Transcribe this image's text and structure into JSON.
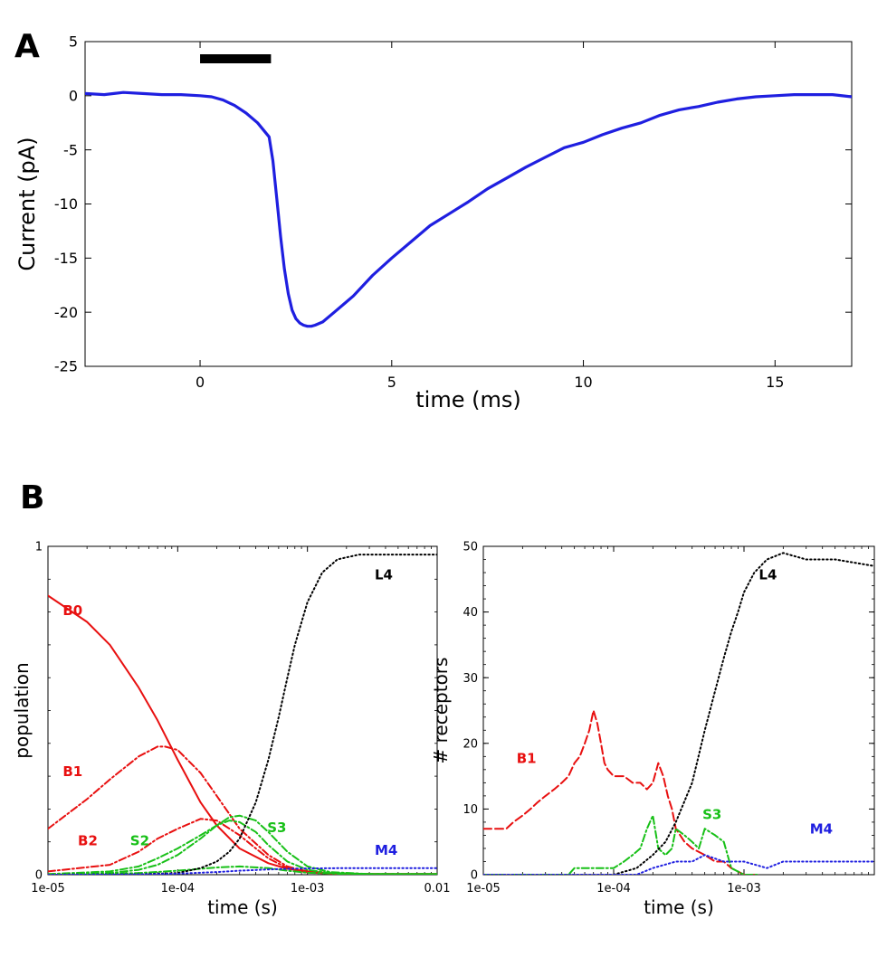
{
  "chart_data": [
    {
      "panel": "A",
      "type": "line",
      "xlabel": "time (ms)",
      "ylabel": "Current (pA)",
      "xlim": [
        -3,
        17
      ],
      "ylim": [
        -25,
        5
      ],
      "xticks": [
        "0",
        "5",
        "10",
        "15"
      ],
      "xtick_values": [
        0,
        5,
        10,
        15
      ],
      "yticks": [
        "5",
        "0",
        "-5",
        "-10",
        "-15",
        "-20",
        "-25"
      ],
      "ytick_values": [
        5,
        0,
        -5,
        -10,
        -15,
        -20,
        -25
      ],
      "grid": false,
      "stimulus_bar": [
        0,
        1.85
      ],
      "stimulus_color": "#000000",
      "series": [
        {
          "color": "#1f1fe0",
          "style": "solid",
          "x": [
            -3,
            -2.5,
            -2,
            -1.5,
            -1,
            -0.5,
            0,
            0.3,
            0.6,
            0.9,
            1.2,
            1.5,
            1.8,
            1.9,
            2.0,
            2.1,
            2.2,
            2.3,
            2.4,
            2.5,
            2.6,
            2.7,
            2.8,
            2.9,
            3.0,
            3.2,
            3.5,
            4.0,
            4.5,
            5.0,
            5.5,
            6.0,
            6.5,
            7.0,
            7.5,
            8.0,
            8.5,
            9.0,
            9.5,
            10.0,
            10.5,
            11.0,
            11.5,
            12.0,
            12.5,
            13.0,
            13.5,
            14.0,
            14.5,
            15.0,
            15.5,
            16.0,
            16.5,
            17.0
          ],
          "y": [
            0.2,
            0.1,
            0.3,
            0.2,
            0.1,
            0.1,
            0.0,
            -0.1,
            -0.4,
            -0.9,
            -1.6,
            -2.5,
            -3.8,
            -6.0,
            -9.5,
            -13.0,
            -16.0,
            -18.3,
            -19.8,
            -20.6,
            -21.0,
            -21.2,
            -21.3,
            -21.3,
            -21.2,
            -20.9,
            -20.0,
            -18.5,
            -16.6,
            -15.0,
            -13.5,
            -12.0,
            -10.9,
            -9.8,
            -8.6,
            -7.6,
            -6.6,
            -5.7,
            -4.8,
            -4.3,
            -3.6,
            -3.0,
            -2.5,
            -1.8,
            -1.3,
            -1.0,
            -0.6,
            -0.3,
            -0.1,
            0.0,
            0.1,
            0.1,
            0.1,
            -0.1
          ]
        }
      ]
    },
    {
      "panel": "B",
      "subpanel": "left",
      "type": "line",
      "xlabel": "time (s)",
      "ylabel": "population",
      "xscale": "log",
      "xlim": [
        1e-05,
        0.01
      ],
      "ylim": [
        0,
        1
      ],
      "xticks": [
        "1e-05",
        "1e-04",
        "1e-03",
        "0.01"
      ],
      "xtick_values": [
        1e-05,
        0.0001,
        0.001,
        0.01
      ],
      "yticks": [
        "0",
        "1"
      ],
      "ytick_values": [
        0,
        1
      ],
      "grid": false,
      "annotations": [
        {
          "text": "B0",
          "color": "#e81010",
          "x": 1.3e-05,
          "y": 0.79
        },
        {
          "text": "B1",
          "color": "#e81010",
          "x": 1.3e-05,
          "y": 0.3
        },
        {
          "text": "B2",
          "color": "#e81010",
          "x": 1.7e-05,
          "y": 0.09
        },
        {
          "text": "S2",
          "color": "#18c018",
          "x": 4.3e-05,
          "y": 0.09
        },
        {
          "text": "S3",
          "color": "#18c018",
          "x": 0.00049,
          "y": 0.13
        },
        {
          "text": "L4",
          "color": "#000000",
          "x": 0.0033,
          "y": 0.9
        },
        {
          "text": "M4",
          "color": "#1f1fe0",
          "x": 0.0033,
          "y": 0.06
        }
      ],
      "series": [
        {
          "color": "#e81010",
          "style": "solid",
          "x": [
            1e-05,
            2e-05,
            3e-05,
            5e-05,
            7e-05,
            0.0001,
            0.00015,
            0.0002,
            0.0003,
            0.0005,
            0.0007,
            0.001,
            0.0015,
            0.003,
            0.01
          ],
          "y": [
            0.85,
            0.77,
            0.7,
            0.57,
            0.47,
            0.35,
            0.22,
            0.15,
            0.08,
            0.035,
            0.018,
            0.01,
            0.005,
            0.002,
            0.002
          ]
        },
        {
          "color": "#e81010",
          "style": "dashdot",
          "x": [
            1e-05,
            2e-05,
            3e-05,
            5e-05,
            7e-05,
            8e-05,
            0.0001,
            0.00015,
            0.0002,
            0.0003,
            0.0005,
            0.0007,
            0.001,
            0.0015,
            0.003,
            0.01
          ],
          "y": [
            0.14,
            0.23,
            0.29,
            0.36,
            0.39,
            0.39,
            0.38,
            0.31,
            0.24,
            0.14,
            0.06,
            0.025,
            0.01,
            0.004,
            0.002,
            0.002
          ]
        },
        {
          "color": "#e81010",
          "style": "dashdot",
          "x": [
            1e-05,
            3e-05,
            5e-05,
            7e-05,
            0.0001,
            0.00015,
            0.0002,
            0.0003,
            0.0004,
            0.0005,
            0.0007,
            0.001,
            0.0015,
            0.003,
            0.01
          ],
          "y": [
            0.01,
            0.03,
            0.07,
            0.11,
            0.14,
            0.17,
            0.165,
            0.12,
            0.08,
            0.05,
            0.02,
            0.007,
            0.003,
            0.001,
            0.001
          ]
        },
        {
          "color": "#18c018",
          "style": "dashdot",
          "x": [
            1e-05,
            3e-05,
            5e-05,
            7e-05,
            0.0001,
            0.00015,
            0.0002,
            0.00025,
            0.0003,
            0.0004,
            0.0005,
            0.0007,
            0.001,
            0.0015,
            0.003,
            0.01
          ],
          "y": [
            0.002,
            0.01,
            0.025,
            0.05,
            0.08,
            0.12,
            0.15,
            0.165,
            0.16,
            0.13,
            0.09,
            0.04,
            0.015,
            0.005,
            0.002,
            0.002
          ]
        },
        {
          "color": "#18c018",
          "style": "dashdot",
          "x": [
            1e-05,
            3e-05,
            5e-05,
            7e-05,
            0.0001,
            0.00015,
            0.0002,
            0.00025,
            0.0003,
            0.0004,
            0.0005,
            0.0007,
            0.001,
            0.0015,
            0.003,
            0.01
          ],
          "y": [
            0.001,
            0.005,
            0.015,
            0.03,
            0.06,
            0.11,
            0.15,
            0.175,
            0.18,
            0.165,
            0.13,
            0.07,
            0.025,
            0.008,
            0.002,
            0.002
          ]
        },
        {
          "color": "#18c018",
          "style": "dashdot",
          "x": [
            1e-05,
            5e-05,
            0.0001,
            0.0002,
            0.0003,
            0.0005,
            0.0007,
            0.001,
            0.002,
            0.01
          ],
          "y": [
            0.0,
            0.005,
            0.012,
            0.022,
            0.025,
            0.02,
            0.012,
            0.006,
            0.002,
            0.001
          ]
        },
        {
          "color": "#000000",
          "style": "dotted",
          "x": [
            1e-05,
            5e-05,
            0.0001,
            0.00015,
            0.0002,
            0.00025,
            0.0003,
            0.0004,
            0.0005,
            0.0006,
            0.0007,
            0.0008,
            0.001,
            0.0013,
            0.0017,
            0.0025,
            0.004,
            0.01
          ],
          "y": [
            0.0,
            0.001,
            0.005,
            0.02,
            0.04,
            0.07,
            0.11,
            0.22,
            0.35,
            0.48,
            0.6,
            0.7,
            0.83,
            0.92,
            0.96,
            0.975,
            0.975,
            0.975
          ]
        },
        {
          "color": "#1f1fe0",
          "style": "dotted",
          "x": [
            1e-05,
            5e-05,
            0.0001,
            0.0002,
            0.0003,
            0.0005,
            0.0007,
            0.001,
            0.002,
            0.01
          ],
          "y": [
            0.0,
            0.001,
            0.003,
            0.008,
            0.012,
            0.016,
            0.018,
            0.019,
            0.02,
            0.02
          ]
        }
      ]
    },
    {
      "panel": "B",
      "subpanel": "right",
      "type": "line",
      "xlabel": "time (s)",
      "ylabel": "# receptors",
      "xscale": "log",
      "xlim": [
        1e-05,
        0.01
      ],
      "ylim": [
        0,
        50
      ],
      "xticks": [
        "1e-05",
        "1e-04",
        "1e-03"
      ],
      "xtick_values": [
        1e-05,
        0.0001,
        0.001
      ],
      "yticks": [
        "0",
        "10",
        "20",
        "30",
        "40",
        "50"
      ],
      "ytick_values": [
        0,
        10,
        20,
        30,
        40,
        50
      ],
      "grid": false,
      "annotations": [
        {
          "text": "B1",
          "color": "#e81010",
          "x": 1.8e-05,
          "y": 17
        },
        {
          "text": "S3",
          "color": "#18c018",
          "x": 0.00048,
          "y": 8.5
        },
        {
          "text": "L4",
          "color": "#000000",
          "x": 0.0013,
          "y": 45
        },
        {
          "text": "M4",
          "color": "#1f1fe0",
          "x": 0.0032,
          "y": 6.3
        }
      ],
      "series": [
        {
          "color": "#e81010",
          "style": "dashed",
          "x": [
            1e-05,
            1.5e-05,
            1.7e-05,
            2e-05,
            2.3e-05,
            2.6e-05,
            3e-05,
            3.5e-05,
            4e-05,
            4.5e-05,
            5e-05,
            5.5e-05,
            6e-05,
            6.5e-05,
            7e-05,
            7.5e-05,
            8e-05,
            8.5e-05,
            9e-05,
            0.0001,
            0.00012,
            0.00014,
            0.00016,
            0.00018,
            0.0002,
            0.00022,
            0.00024,
            0.00026,
            0.00028,
            0.0003,
            0.00035,
            0.0004,
            0.0005,
            0.0006,
            0.0007,
            0.0008,
            0.001,
            0.0013
          ],
          "y": [
            7,
            7,
            8,
            9,
            10,
            11,
            12,
            13,
            14,
            15,
            17,
            18,
            20,
            22,
            25,
            23,
            20,
            17,
            16,
            15,
            15,
            14,
            14,
            13,
            14,
            17,
            15,
            12,
            10,
            7,
            5,
            4,
            3,
            2,
            2,
            1,
            0,
            0
          ]
        },
        {
          "color": "#18c018",
          "style": "dashdot",
          "x": [
            1e-05,
            4.5e-05,
            5e-05,
            7e-05,
            0.0001,
            0.00012,
            0.00014,
            0.00016,
            0.00018,
            0.0002,
            0.00022,
            0.00025,
            0.00028,
            0.0003,
            0.00035,
            0.0004,
            0.00045,
            0.0005,
            0.0006,
            0.0007,
            0.0008,
            0.001,
            0.0013
          ],
          "y": [
            0,
            0,
            1,
            1,
            1,
            2,
            3,
            4,
            7,
            9,
            4,
            3,
            4,
            7,
            6,
            5,
            4,
            7,
            6,
            5,
            1,
            0,
            0
          ]
        },
        {
          "color": "#000000",
          "style": "dotted",
          "x": [
            1e-05,
            0.0001,
            0.00015,
            0.0002,
            0.00025,
            0.0003,
            0.0004,
            0.0005,
            0.0006,
            0.0007,
            0.0008,
            0.0009,
            0.001,
            0.0012,
            0.0015,
            0.002,
            0.003,
            0.005,
            0.01
          ],
          "y": [
            0,
            0,
            1,
            3,
            5,
            8,
            14,
            22,
            28,
            33,
            37,
            40,
            43,
            46,
            48,
            49,
            48,
            48,
            47
          ]
        },
        {
          "color": "#1f1fe0",
          "style": "dotted",
          "x": [
            1e-05,
            0.00015,
            0.0002,
            0.0003,
            0.0004,
            0.0005,
            0.0007,
            0.001,
            0.0015,
            0.002,
            0.003,
            0.005,
            0.01
          ],
          "y": [
            0,
            0,
            1,
            2,
            2,
            3,
            2,
            2,
            1,
            2,
            2,
            2,
            2
          ]
        }
      ]
    }
  ]
}
